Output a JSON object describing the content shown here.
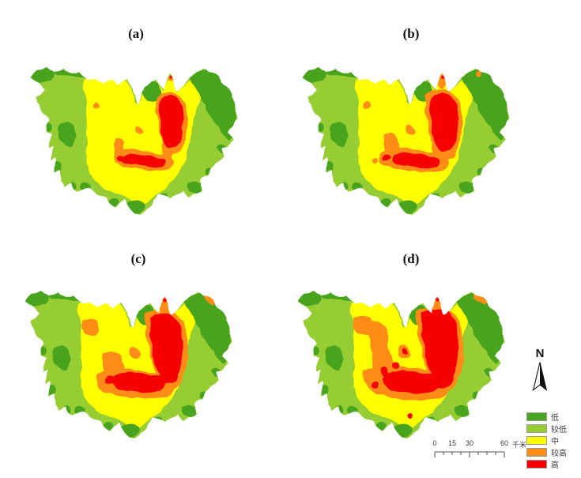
{
  "panels": [
    {
      "id": "a",
      "label": "(a)"
    },
    {
      "id": "b",
      "label": "(b)"
    },
    {
      "id": "c",
      "label": "(c)"
    },
    {
      "id": "d",
      "label": "(d)"
    }
  ],
  "legend": {
    "items": [
      {
        "key": "low",
        "label": "低",
        "color": "#46A41E"
      },
      {
        "key": "rel_low",
        "label": "较低",
        "color": "#96CD32"
      },
      {
        "key": "mid",
        "label": "中",
        "color": "#FFFF00"
      },
      {
        "key": "rel_high",
        "label": "较高",
        "color": "#FF8C14"
      },
      {
        "key": "high",
        "label": "高",
        "color": "#F70000"
      }
    ]
  },
  "north_arrow": {
    "label": "N"
  },
  "scale_bar": {
    "tick_labels": [
      "0",
      "15",
      "30",
      "60"
    ],
    "unit": "千米"
  }
}
